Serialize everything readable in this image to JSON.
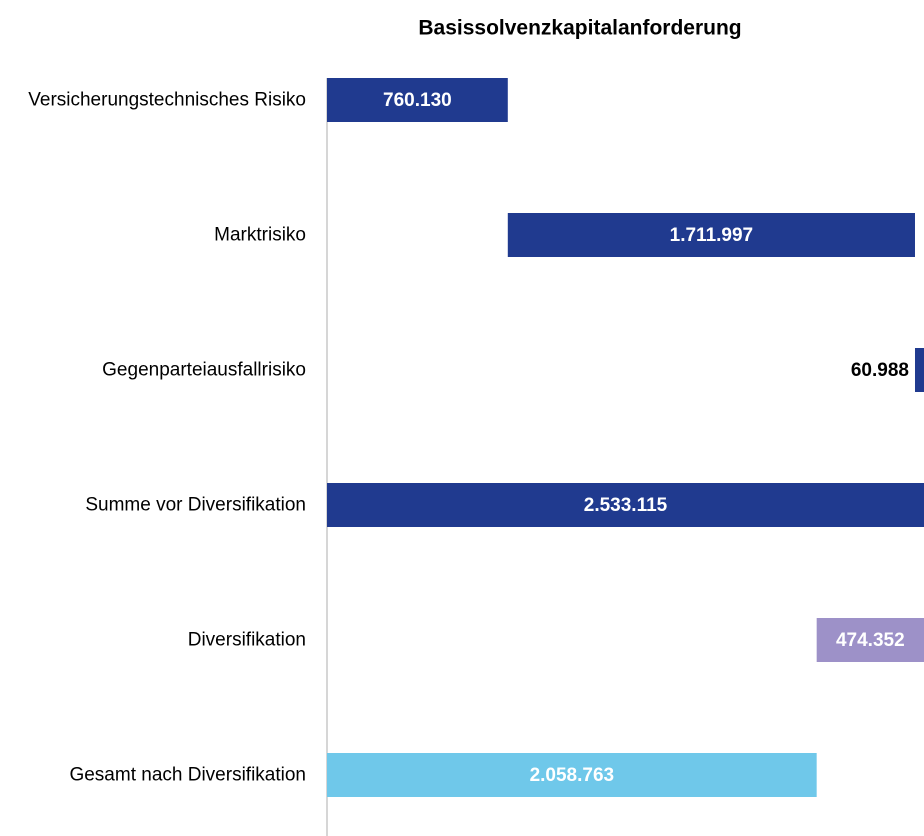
{
  "chart_data": {
    "type": "waterfall",
    "title": "Basissolvenzkapitalanforderung",
    "categories": [
      "Versicherungstechnisches Risiko",
      "Marktrisiko",
      "Gegenparteiausfallrisiko",
      "Summe vor Diversifikation",
      "Diversifikation",
      "Gesamt nach Diversifikation"
    ],
    "values": [
      760130,
      1711997,
      60988,
      2533115,
      -474352,
      2058763
    ],
    "value_labels": [
      "760.130",
      "1.711.997",
      "60.988",
      "2.533.115",
      "474.352",
      "2.058.763"
    ],
    "measure": [
      "relative",
      "relative",
      "relative",
      "total",
      "relative",
      "total"
    ],
    "colors": [
      "#203a8f",
      "#203a8f",
      "#203a8f",
      "#203a8f",
      "#9d91c8",
      "#6fc8ea"
    ],
    "xlim": [
      0,
      2510000
    ]
  }
}
